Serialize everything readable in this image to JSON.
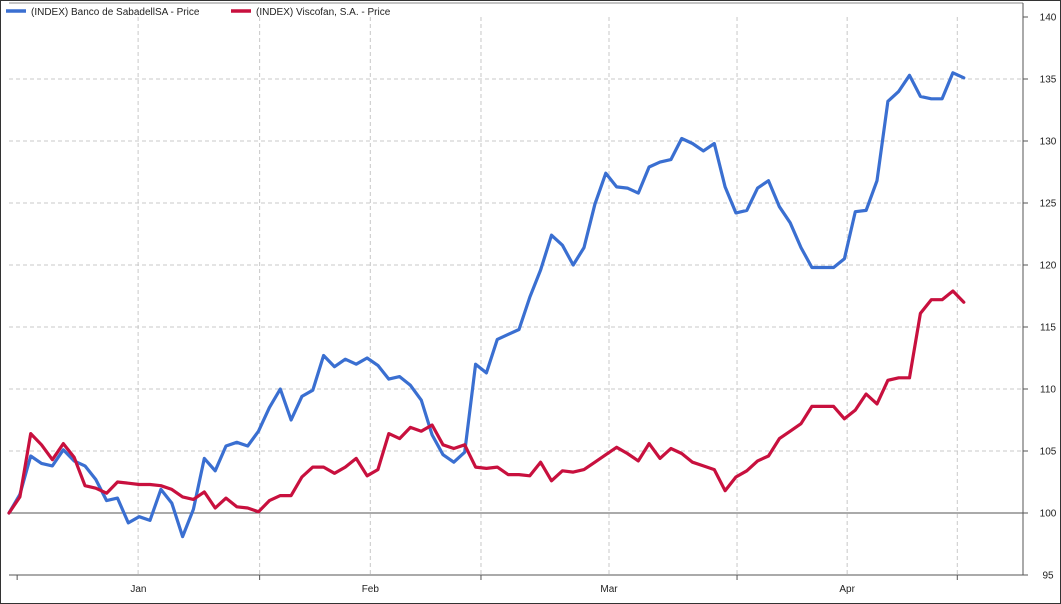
{
  "chart_data": {
    "type": "line",
    "title": "",
    "xlabel": "",
    "ylabel": "",
    "ylim": [
      95,
      140
    ],
    "y_ticks": [
      95,
      100,
      105,
      110,
      115,
      120,
      125,
      130,
      135,
      140
    ],
    "y_axis_side": "right",
    "x_month_labels": [
      "Jan",
      "Feb",
      "Mar",
      "Apr"
    ],
    "grid": true,
    "legend_position": "top-left",
    "reference_line": 100,
    "series": [
      {
        "name": "(INDEX) Banco de SabadellSA - Price",
        "color": "#3a6fd1",
        "values": [
          100.0,
          101.5,
          104.6,
          104.0,
          103.8,
          105.1,
          104.2,
          103.8,
          102.7,
          101.0,
          101.2,
          99.2,
          99.7,
          99.4,
          101.9,
          100.8,
          98.1,
          100.3,
          104.4,
          103.4,
          105.4,
          105.7,
          105.4,
          106.6,
          108.5,
          110.0,
          107.5,
          109.4,
          109.9,
          112.7,
          111.8,
          112.4,
          112.0,
          112.5,
          111.9,
          110.8,
          111.0,
          110.3,
          109.1,
          106.3,
          104.7,
          104.1,
          104.9,
          112.0,
          111.3,
          114.0,
          114.4,
          114.8,
          117.4,
          119.6,
          122.4,
          121.6,
          120.0,
          121.4,
          124.9,
          127.4,
          126.3,
          126.2,
          125.8,
          127.9,
          128.3,
          128.5,
          130.2,
          129.8,
          129.2,
          129.8,
          126.3,
          124.2,
          124.4,
          126.2,
          126.8,
          124.7,
          123.4,
          121.4,
          119.8,
          119.8,
          119.8,
          120.5,
          124.3,
          124.4,
          126.8,
          133.2,
          134.0,
          135.3,
          133.6,
          133.4,
          133.4,
          135.5,
          135.1
        ]
      },
      {
        "name": "(INDEX) Viscofan, S.A. - Price",
        "color": "#c8103e",
        "values": [
          100.0,
          101.3,
          106.4,
          105.5,
          104.3,
          105.6,
          104.5,
          102.2,
          102.0,
          101.6,
          102.5,
          102.4,
          102.3,
          102.3,
          102.2,
          101.9,
          101.3,
          101.1,
          101.7,
          100.4,
          101.2,
          100.5,
          100.4,
          100.1,
          101.0,
          101.4,
          101.4,
          102.9,
          103.7,
          103.7,
          103.2,
          103.7,
          104.4,
          103.0,
          103.5,
          106.4,
          106.0,
          106.9,
          106.6,
          107.1,
          105.5,
          105.2,
          105.5,
          103.7,
          103.6,
          103.7,
          103.1,
          103.1,
          103.0,
          104.1,
          102.6,
          103.4,
          103.3,
          103.5,
          104.1,
          104.7,
          105.3,
          104.8,
          104.2,
          105.6,
          104.4,
          105.2,
          104.8,
          104.1,
          103.8,
          103.5,
          101.8,
          102.9,
          103.4,
          104.2,
          104.6,
          106.0,
          106.6,
          107.2,
          108.6,
          108.6,
          108.6,
          107.6,
          108.3,
          109.6,
          108.8,
          110.7,
          110.9,
          110.9,
          116.1,
          117.2,
          117.2,
          117.9,
          117.0
        ]
      }
    ]
  }
}
